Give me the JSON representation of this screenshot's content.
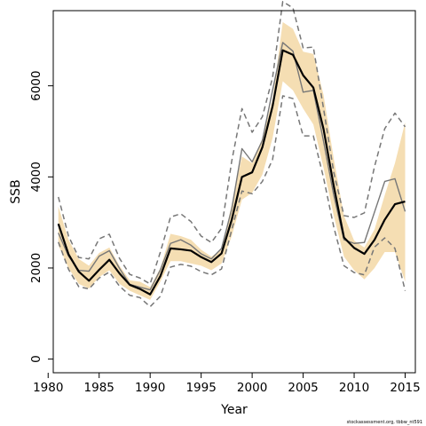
{
  "chart_data": {
    "type": "line",
    "title": "",
    "xlabel": "Year",
    "ylabel": "SSB",
    "xlim": [
      1980.5,
      2016
    ],
    "ylim": [
      -300,
      7650
    ],
    "x_ticks": [
      1980,
      1985,
      1990,
      1995,
      2000,
      2005,
      2010,
      2015
    ],
    "y_ticks": [
      0,
      2000,
      4000,
      6000
    ],
    "grid": false,
    "legend": "none",
    "credit": "stockassessment.org, tbbw_nt591",
    "x": [
      1981,
      1982,
      1983,
      1984,
      1985,
      1986,
      1987,
      1988,
      1989,
      1990,
      1991,
      1992,
      1993,
      1994,
      1995,
      1996,
      1997,
      1998,
      1999,
      2000,
      2001,
      2002,
      2003,
      2004,
      2005,
      2006,
      2007,
      2008,
      2009,
      2010,
      2011,
      2012,
      2013,
      2014,
      2015
    ],
    "series": [
      {
        "key": "ci_upper",
        "color": "#f5deb3",
        "values": [
          3350,
          2620,
          2200,
          2050,
          2330,
          2450,
          2050,
          1730,
          1700,
          1580,
          2000,
          2750,
          2700,
          2620,
          2400,
          2250,
          2400,
          3400,
          4450,
          4300,
          4850,
          5700,
          7400,
          7250,
          6750,
          6700,
          5800,
          4400,
          3150,
          2600,
          2450,
          2850,
          3600,
          4300,
          5200
        ]
      },
      {
        "key": "ci_lower",
        "color": "#f5deb3",
        "values": [
          2500,
          2000,
          1650,
          1550,
          1800,
          1950,
          1650,
          1500,
          1400,
          1300,
          1700,
          2150,
          2150,
          2100,
          2050,
          1950,
          2100,
          2700,
          3500,
          3650,
          4050,
          4850,
          6100,
          5900,
          5500,
          5150,
          4200,
          3150,
          2250,
          1950,
          1750,
          2000,
          2350,
          2350,
          1700
        ]
      },
      {
        "key": "estimate",
        "color": "#000000",
        "values": [
          2970,
          2300,
          1920,
          1720,
          1960,
          2180,
          1880,
          1630,
          1540,
          1420,
          1820,
          2430,
          2410,
          2380,
          2240,
          2130,
          2320,
          3060,
          4000,
          4100,
          4650,
          5550,
          6780,
          6680,
          6230,
          5960,
          5050,
          3800,
          2670,
          2440,
          2310,
          2620,
          3060,
          3400,
          3460
        ]
      },
      {
        "key": "upper_dashed",
        "color": "#777777",
        "values": [
          3560,
          2700,
          2230,
          2200,
          2640,
          2740,
          2210,
          1860,
          1780,
          1650,
          2350,
          3120,
          3190,
          3020,
          2700,
          2560,
          2870,
          4350,
          5500,
          4980,
          5320,
          6180,
          7850,
          7710,
          6830,
          6850,
          5500,
          4100,
          3150,
          3110,
          3210,
          4230,
          5060,
          5400,
          5100
        ]
      },
      {
        "key": "lower_dashed",
        "color": "#777777",
        "values": [
          2570,
          1970,
          1590,
          1540,
          1780,
          1910,
          1600,
          1400,
          1350,
          1150,
          1380,
          2020,
          2080,
          2040,
          1920,
          1850,
          1980,
          2840,
          3690,
          3630,
          3900,
          4380,
          5780,
          5720,
          4900,
          4900,
          3980,
          2900,
          2050,
          1900,
          1850,
          2460,
          2660,
          2430,
          1500
        ]
      },
      {
        "key": "solid_grey",
        "color": "#777777",
        "values": [
          2770,
          2260,
          1950,
          1930,
          2260,
          2380,
          1990,
          1640,
          1580,
          1520,
          1960,
          2540,
          2620,
          2500,
          2310,
          2200,
          2430,
          3300,
          4620,
          4330,
          4800,
          5900,
          6950,
          6760,
          5860,
          5900,
          4780,
          3600,
          2620,
          2540,
          2560,
          3230,
          3900,
          3960,
          3240
        ]
      }
    ]
  }
}
